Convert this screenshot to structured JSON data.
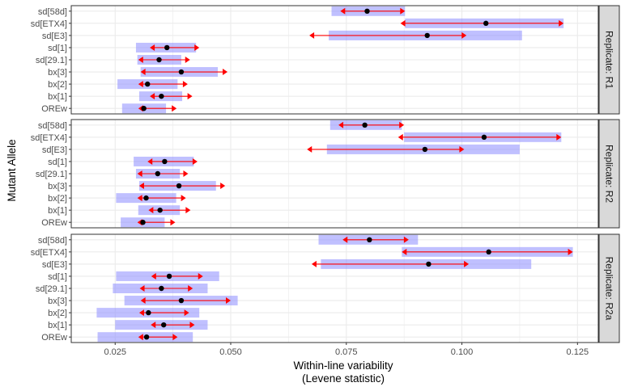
{
  "chart_data": {
    "type": "interval",
    "xlabel_lines": [
      "Within-line variability",
      "(Levene statistic)"
    ],
    "ylabel": "Mutant Allele",
    "xlim": [
      0.0155,
      0.1295
    ],
    "x_ticks": [
      0.025,
      0.05,
      0.075,
      0.1,
      0.125
    ],
    "x_tick_labels": [
      "0.025",
      "0.050",
      "0.075",
      "0.100",
      "0.125"
    ],
    "categories": [
      "sd[58d]",
      "sd[ETX4]",
      "sd[E3]",
      "sd[1]",
      "sd[29.1]",
      "bx[3]",
      "bx[2]",
      "bx[1]",
      "OREw"
    ],
    "colors": {
      "band": "#8c8cff",
      "error": "#ff0000",
      "point": "#000000",
      "strip_bg": "#d9d9d9",
      "grid": "#ebebeb"
    },
    "panels": [
      {
        "strip_label": "Replicate: R1",
        "rows": [
          {
            "allele": "sd[58d]",
            "mean": 0.0795,
            "lo": 0.0737,
            "hi": 0.0877,
            "band_lo": 0.0718,
            "band_hi": 0.0877
          },
          {
            "allele": "sd[ETX4]",
            "mean": 0.1052,
            "lo": 0.0867,
            "hi": 0.122,
            "band_lo": 0.0877,
            "band_hi": 0.122
          },
          {
            "allele": "sd[E3]",
            "mean": 0.0925,
            "lo": 0.067,
            "hi": 0.101,
            "band_lo": 0.0712,
            "band_hi": 0.113
          },
          {
            "allele": "sd[1]",
            "mean": 0.0362,
            "lo": 0.0325,
            "hi": 0.0432,
            "band_lo": 0.0295,
            "band_hi": 0.0425
          },
          {
            "allele": "sd[29.1]",
            "mean": 0.0345,
            "lo": 0.03,
            "hi": 0.0412,
            "band_lo": 0.0298,
            "band_hi": 0.0393
          },
          {
            "allele": "bx[3]",
            "mean": 0.0393,
            "lo": 0.0305,
            "hi": 0.0493,
            "band_lo": 0.0305,
            "band_hi": 0.0472
          },
          {
            "allele": "bx[2]",
            "mean": 0.032,
            "lo": 0.03,
            "hi": 0.0407,
            "band_lo": 0.0255,
            "band_hi": 0.0385
          },
          {
            "allele": "bx[1]",
            "mean": 0.035,
            "lo": 0.0325,
            "hi": 0.0417,
            "band_lo": 0.0302,
            "band_hi": 0.0395
          },
          {
            "allele": "OREw",
            "mean": 0.0312,
            "lo": 0.03,
            "hi": 0.0383,
            "band_lo": 0.0265,
            "band_hi": 0.036
          }
        ]
      },
      {
        "strip_label": "Replicate: R2",
        "rows": [
          {
            "allele": "sd[58d]",
            "mean": 0.079,
            "lo": 0.0733,
            "hi": 0.0875,
            "band_lo": 0.0715,
            "band_hi": 0.087
          },
          {
            "allele": "sd[ETX4]",
            "mean": 0.1048,
            "lo": 0.0862,
            "hi": 0.1215,
            "band_lo": 0.0875,
            "band_hi": 0.1215
          },
          {
            "allele": "sd[E3]",
            "mean": 0.092,
            "lo": 0.0665,
            "hi": 0.1005,
            "band_lo": 0.0708,
            "band_hi": 0.1125
          },
          {
            "allele": "sd[1]",
            "mean": 0.0357,
            "lo": 0.032,
            "hi": 0.0428,
            "band_lo": 0.029,
            "band_hi": 0.042
          },
          {
            "allele": "sd[29.1]",
            "mean": 0.0342,
            "lo": 0.0298,
            "hi": 0.0408,
            "band_lo": 0.0295,
            "band_hi": 0.039
          },
          {
            "allele": "bx[3]",
            "mean": 0.0388,
            "lo": 0.0302,
            "hi": 0.0488,
            "band_lo": 0.0302,
            "band_hi": 0.0468
          },
          {
            "allele": "bx[2]",
            "mean": 0.0317,
            "lo": 0.0298,
            "hi": 0.0403,
            "band_lo": 0.0252,
            "band_hi": 0.0382
          },
          {
            "allele": "bx[1]",
            "mean": 0.0347,
            "lo": 0.0322,
            "hi": 0.0413,
            "band_lo": 0.03,
            "band_hi": 0.039
          },
          {
            "allele": "OREw",
            "mean": 0.031,
            "lo": 0.0298,
            "hi": 0.038,
            "band_lo": 0.0262,
            "band_hi": 0.0357
          }
        ]
      },
      {
        "strip_label": "Replicate: R2a",
        "rows": [
          {
            "allele": "sd[58d]",
            "mean": 0.08,
            "lo": 0.0742,
            "hi": 0.0885,
            "band_lo": 0.069,
            "band_hi": 0.0905
          },
          {
            "allele": "sd[ETX4]",
            "mean": 0.1058,
            "lo": 0.087,
            "hi": 0.124,
            "band_lo": 0.087,
            "band_hi": 0.124
          },
          {
            "allele": "sd[E3]",
            "mean": 0.0928,
            "lo": 0.0675,
            "hi": 0.1015,
            "band_lo": 0.0695,
            "band_hi": 0.115
          },
          {
            "allele": "sd[1]",
            "mean": 0.0367,
            "lo": 0.0328,
            "hi": 0.044,
            "band_lo": 0.0252,
            "band_hi": 0.0475
          },
          {
            "allele": "sd[29.1]",
            "mean": 0.035,
            "lo": 0.0303,
            "hi": 0.0418,
            "band_lo": 0.0245,
            "band_hi": 0.045
          },
          {
            "allele": "bx[3]",
            "mean": 0.0393,
            "lo": 0.0305,
            "hi": 0.05,
            "band_lo": 0.027,
            "band_hi": 0.0515
          },
          {
            "allele": "bx[2]",
            "mean": 0.0322,
            "lo": 0.0302,
            "hi": 0.041,
            "band_lo": 0.021,
            "band_hi": 0.0432
          },
          {
            "allele": "bx[1]",
            "mean": 0.0355,
            "lo": 0.0327,
            "hi": 0.0422,
            "band_lo": 0.025,
            "band_hi": 0.045
          },
          {
            "allele": "OREw",
            "mean": 0.0318,
            "lo": 0.03,
            "hi": 0.0385,
            "band_lo": 0.0212,
            "band_hi": 0.0418
          }
        ]
      }
    ]
  }
}
